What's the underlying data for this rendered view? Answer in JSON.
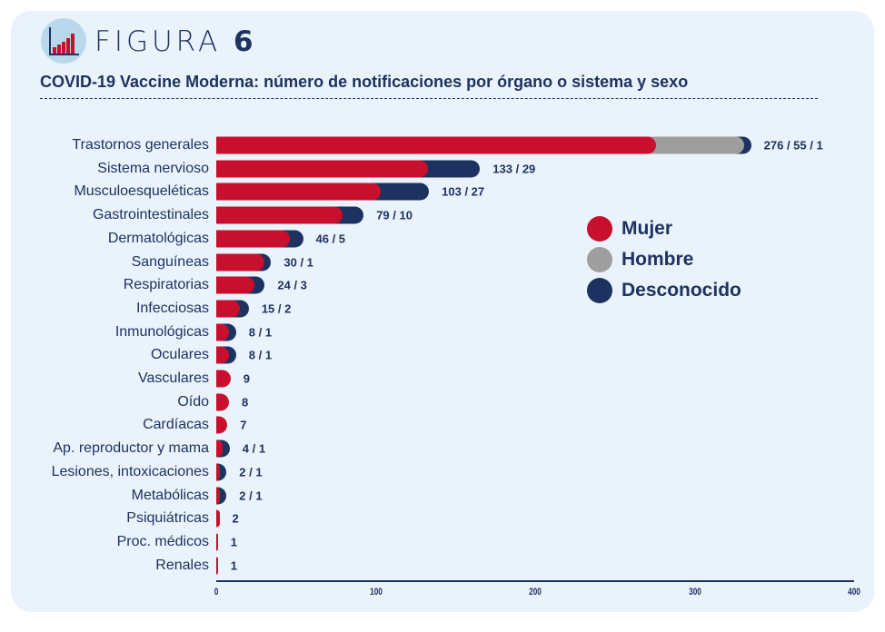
{
  "header": {
    "figure_word": "FIGURA",
    "figure_number": "6"
  },
  "colors": {
    "Mujer": "#c8102e",
    "Hombre": "#9e9e9e",
    "Desconocido": "#1d3260"
  },
  "chart_data": {
    "type": "bar",
    "orientation": "horizontal",
    "stacked": true,
    "title": "COVID-19 Vaccine Moderna: número de notificaciones por órgano o sistema y sexo",
    "categories": [
      "Trastornos generales",
      "Sistema nervioso",
      "Musculoesqueléticas",
      "Gastrointestinales",
      "Dermatológicas",
      "Sanguíneas",
      "Respiratorias",
      "Infecciosas",
      "Inmunológicas",
      "Oculares",
      "Vasculares",
      "Oído",
      "Cardíacas",
      "Ap. reproductor y mama",
      "Lesiones, intoxicaciones",
      "Metabólicas",
      "Psiquiátricas",
      "Proc. médicos",
      "Renales"
    ],
    "series": [
      {
        "name": "Mujer",
        "values": [
          276,
          133,
          103,
          79,
          46,
          30,
          24,
          15,
          8,
          8,
          9,
          8,
          7,
          4,
          2,
          2,
          2,
          1,
          1
        ]
      },
      {
        "name": "Hombre",
        "values": [
          55,
          0,
          0,
          0,
          0,
          0,
          0,
          0,
          0,
          0,
          0,
          0,
          0,
          0,
          0,
          0,
          0,
          0,
          0
        ]
      },
      {
        "name": "Desconocido",
        "values": [
          1,
          29,
          27,
          10,
          5,
          1,
          3,
          2,
          1,
          1,
          0,
          0,
          0,
          1,
          1,
          1,
          0,
          0,
          0
        ]
      }
    ],
    "data_labels": [
      "276 / 55 / 1",
      "133 / 29",
      "103 / 27",
      "79 / 10",
      "46 / 5",
      "30 / 1",
      "24 / 3",
      "15 / 2",
      "8 / 1",
      "8 / 1",
      "9",
      "8",
      "7",
      "4 / 1",
      "2 / 1",
      "2 / 1",
      "2",
      "1",
      "1"
    ],
    "xlim": [
      0,
      400
    ],
    "xticks": [
      "0",
      "100",
      "200",
      "300",
      "400"
    ],
    "legend": [
      "Mujer",
      "Hombre",
      "Desconocido"
    ],
    "legend_position": "right",
    "grid": false
  }
}
